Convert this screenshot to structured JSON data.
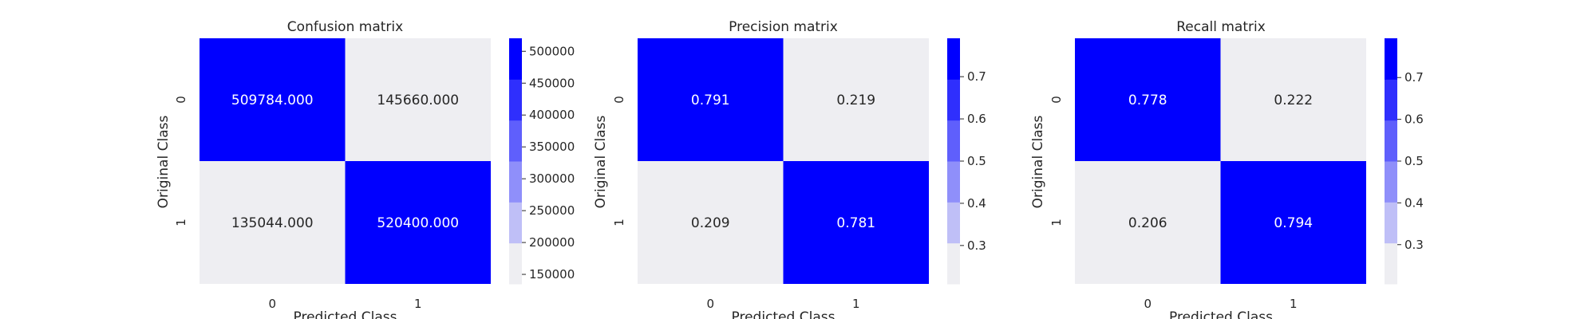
{
  "chart_data": [
    {
      "type": "heatmap",
      "title": "Confusion matrix",
      "xlabel": "Predicted Class",
      "ylabel": "Original Class",
      "x_categories": [
        "0",
        "1"
      ],
      "y_categories": [
        "0",
        "1"
      ],
      "values": [
        [
          509784.0,
          145660.0
        ],
        [
          135044.0,
          520400.0
        ]
      ],
      "cell_labels": [
        [
          "509784.000",
          "145660.000"
        ],
        [
          "135044.000",
          "520400.000"
        ]
      ],
      "colorbar": {
        "range": [
          135044,
          520400
        ],
        "ticks": [
          150000,
          200000,
          250000,
          300000,
          350000,
          400000,
          450000,
          500000
        ],
        "tick_labels": [
          "150000",
          "200000",
          "250000",
          "300000",
          "350000",
          "400000",
          "450000",
          "500000"
        ]
      }
    },
    {
      "type": "heatmap",
      "title": "Precision matrix",
      "xlabel": "Predicted Class",
      "ylabel": "Original Class",
      "x_categories": [
        "0",
        "1"
      ],
      "y_categories": [
        "0",
        "1"
      ],
      "values": [
        [
          0.791,
          0.219
        ],
        [
          0.209,
          0.781
        ]
      ],
      "cell_labels": [
        [
          "0.791",
          "0.219"
        ],
        [
          "0.209",
          "0.781"
        ]
      ],
      "colorbar": {
        "range": [
          0.209,
          0.791
        ],
        "ticks": [
          0.3,
          0.4,
          0.5,
          0.6,
          0.7
        ],
        "tick_labels": [
          "0.3",
          "0.4",
          "0.5",
          "0.6",
          "0.7"
        ]
      }
    },
    {
      "type": "heatmap",
      "title": "Recall matrix",
      "xlabel": "Predicted Class",
      "ylabel": "Original Class",
      "x_categories": [
        "0",
        "1"
      ],
      "y_categories": [
        "0",
        "1"
      ],
      "values": [
        [
          0.778,
          0.222
        ],
        [
          0.206,
          0.794
        ]
      ],
      "cell_labels": [
        [
          "0.778",
          "0.222"
        ],
        [
          "0.206",
          "0.794"
        ]
      ],
      "colorbar": {
        "range": [
          0.206,
          0.794
        ],
        "ticks": [
          0.3,
          0.4,
          0.5,
          0.6,
          0.7
        ],
        "tick_labels": [
          "0.3",
          "0.4",
          "0.5",
          "0.6",
          "0.7"
        ]
      }
    }
  ],
  "colors": {
    "low": "#eeeef2",
    "high": "#0000ff",
    "text_on_high": "#ffffff",
    "text_on_low": "#262626",
    "palette_steps": [
      "#eeeef2",
      "#bfbff7",
      "#8f8ffa",
      "#5f5ffc",
      "#2f2ffd",
      "#0000ff"
    ]
  }
}
